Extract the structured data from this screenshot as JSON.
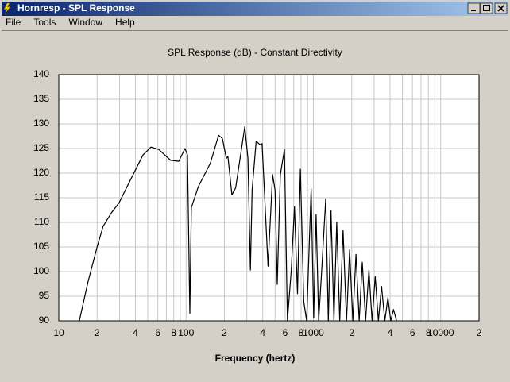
{
  "window": {
    "title": "Hornresp - SPL Response",
    "menu": [
      "File",
      "Tools",
      "Window",
      "Help"
    ]
  },
  "chart_data": {
    "type": "line",
    "title": "SPL Response (dB) - Constant Directivity",
    "x_label": "Frequency (hertz)",
    "xscale": "log",
    "grid": true,
    "color": "#000000",
    "xlim": [
      10,
      20000
    ],
    "ylim": [
      90,
      140
    ],
    "xticks": [
      10,
      {
        "value": 20,
        "label": "2"
      },
      {
        "value": 40,
        "label": "4"
      },
      {
        "value": 60,
        "label": "6"
      },
      {
        "value": 80,
        "label": "8"
      },
      100,
      {
        "value": 200,
        "label": "2"
      },
      {
        "value": 400,
        "label": "4"
      },
      {
        "value": 600,
        "label": "6"
      },
      {
        "value": 800,
        "label": "8"
      },
      1000,
      {
        "value": 2000,
        "label": "2"
      },
      {
        "value": 4000,
        "label": "4"
      },
      {
        "value": 6000,
        "label": "6"
      },
      {
        "value": 8000,
        "label": "8"
      },
      10000,
      {
        "value": 20000,
        "label": "2"
      }
    ],
    "xminor": [
      30,
      50,
      70,
      90,
      300,
      500,
      700,
      900,
      3000,
      5000,
      7000,
      9000
    ],
    "yticks": [
      90,
      95,
      100,
      105,
      110,
      115,
      120,
      125,
      130,
      135,
      140
    ],
    "x": [
      14.5,
      17,
      20,
      22.3,
      26,
      29.8,
      37,
      45.9,
      53,
      61,
      75.6,
      87.6,
      98,
      102.5,
      106,
      107,
      110,
      125,
      155,
      180,
      193,
      207,
      213,
      229,
      245,
      268,
      289,
      306,
      320,
      330,
      355,
      380,
      395,
      415,
      440,
      478,
      500,
      520,
      550,
      592,
      625,
      670,
      710,
      750,
      790,
      840,
      885,
      960,
      1005,
      1050,
      1100,
      1160,
      1250,
      1310,
      1375,
      1450,
      1525,
      1610,
      1710,
      1820,
      1925,
      2040,
      2160,
      2290,
      2420,
      2570,
      2730,
      2890,
      3060,
      3240,
      3430,
      3640,
      3850,
      4050,
      4260,
      4500
    ],
    "values": [
      90,
      98,
      105,
      109.2,
      112,
      114,
      118.9,
      123.7,
      125.3,
      124.8,
      122.6,
      122.4,
      125,
      123.7,
      98.7,
      91.5,
      113,
      117.3,
      122,
      127.7,
      127,
      123,
      123.4,
      115.6,
      117,
      123.7,
      129.4,
      123,
      100.3,
      116.5,
      126.5,
      125.8,
      126,
      114.8,
      101.1,
      119.7,
      116.5,
      97.4,
      119.7,
      124.8,
      90,
      100.3,
      113.2,
      95.5,
      120.8,
      93.9,
      90,
      116.8,
      90.6,
      111.6,
      90,
      100,
      114.8,
      90,
      112.4,
      90,
      110,
      90,
      108.4,
      90,
      104.4,
      90,
      103.5,
      90,
      101.9,
      90,
      100.3,
      90,
      99,
      90,
      97,
      90,
      94.7,
      90,
      92.3,
      90
    ]
  }
}
